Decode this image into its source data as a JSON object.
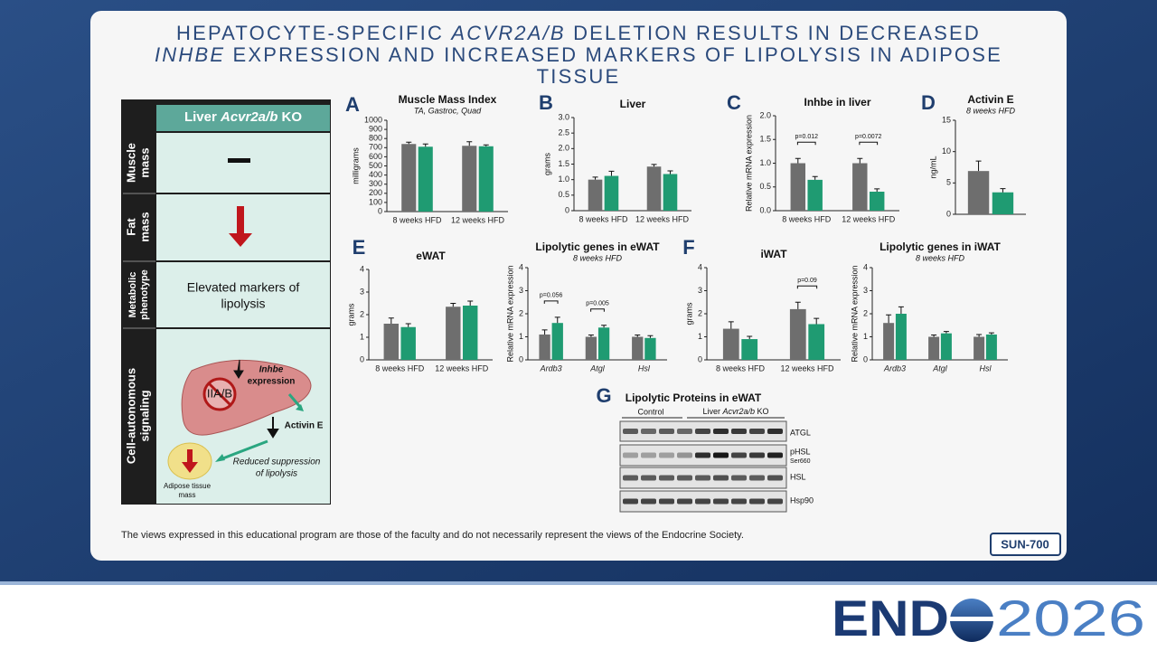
{
  "header": {
    "title_lines": [
      [
        "HEPATOCYTE-SPECIFIC ",
        "ACVR2A/B",
        " DELETION RESULTS IN DECREASED"
      ],
      [
        "INHBE",
        " EXPRESSION AND INCREASED MARKERS OF LIPOLYSIS IN ADIPOSE"
      ],
      [
        "TISSUE"
      ]
    ]
  },
  "summary_table": {
    "header": [
      "Liver ",
      "Acvr2a/b",
      " KO"
    ],
    "rows": [
      {
        "label": [
          "Muscle",
          "mass"
        ]
      },
      {
        "label": [
          "Fat",
          "mass"
        ]
      },
      {
        "label": [
          "Metabolic",
          "phenotype"
        ],
        "text": [
          "Elevated markers of",
          "lipolysis"
        ]
      },
      {
        "label": [
          "Cell-autonomous",
          "signaling"
        ],
        "diagram": {
          "receptor": "IIA/B",
          "inhbe": [
            "Inhbe",
            "expression"
          ],
          "activin": "Activin E",
          "effect": [
            "Reduced suppression",
            "of lipolysis"
          ],
          "adipose": [
            "Adipose tissue",
            "mass"
          ]
        }
      }
    ]
  },
  "chart_data": [
    {
      "type": "bar",
      "panel": "A",
      "title": "Muscle Mass Index",
      "subtitle": "TA, Gastroc, Quad",
      "y_label": "milligrams",
      "categories": [
        "8 weeks HFD",
        "12 weeks HFD"
      ],
      "series": [
        {
          "color": "#6e6e6e",
          "values": [
            740,
            720
          ],
          "errors": [
            20,
            45
          ]
        },
        {
          "color": "#1f9b72",
          "values": [
            710,
            715
          ],
          "errors": [
            30,
            15
          ]
        }
      ],
      "ylim": [
        0,
        1000
      ],
      "yticks": [
        0,
        100,
        200,
        300,
        400,
        500,
        600,
        700,
        800,
        900,
        1000
      ]
    },
    {
      "type": "bar",
      "panel": "B",
      "title": "Liver",
      "y_label": "grams",
      "categories": [
        "8 weeks HFD",
        "12 weeks HFD"
      ],
      "series": [
        {
          "color": "#6e6e6e",
          "values": [
            1.0,
            1.42
          ],
          "errors": [
            0.08,
            0.07
          ]
        },
        {
          "color": "#1f9b72",
          "values": [
            1.12,
            1.18
          ],
          "errors": [
            0.15,
            0.1
          ]
        }
      ],
      "ylim": [
        0,
        3
      ],
      "yticks": [
        0,
        0.5,
        {
          "value": 1,
          "label": "1.0"
        },
        1.5,
        {
          "value": 2,
          "label": "2.0"
        },
        2.5,
        {
          "value": 3,
          "label": "3.0"
        }
      ]
    },
    {
      "type": "bar",
      "panel": "C",
      "title": "Inhbe in liver",
      "y_label": "Relative mRNA expression",
      "categories": [
        "8 weeks HFD",
        "12 weeks HFD"
      ],
      "series": [
        {
          "color": "#6e6e6e",
          "values": [
            1.0,
            1.0
          ],
          "errors": [
            0.1,
            0.1
          ]
        },
        {
          "color": "#1f9b72",
          "values": [
            0.65,
            0.4
          ],
          "errors": [
            0.07,
            0.06
          ]
        }
      ],
      "ylim": [
        0,
        2
      ],
      "yticks": [
        {
          "value": 0,
          "label": "0.0"
        },
        0.5,
        {
          "value": 1,
          "label": "1.0"
        },
        1.5,
        {
          "value": 2,
          "label": "2.0"
        }
      ],
      "annotations": [
        "p=0.012",
        "p=0.0072"
      ]
    },
    {
      "type": "bar",
      "panel": "D",
      "title": "Activin E",
      "subtitle": "8 weeks HFD",
      "y_label": "ng/mL",
      "categories": [
        null
      ],
      "series": [
        {
          "color": "#6e6e6e",
          "values": [
            6.9
          ],
          "errors": [
            1.6
          ]
        },
        {
          "color": "#1f9b72",
          "values": [
            3.5
          ],
          "errors": [
            0.6
          ]
        }
      ],
      "ylim": [
        0,
        15
      ],
      "yticks": [
        0,
        5,
        10,
        15
      ]
    },
    {
      "type": "bar",
      "panel": "E",
      "title": "eWAT",
      "y_label": "grams",
      "categories": [
        "8 weeks HFD",
        "12 weeks HFD"
      ],
      "series": [
        {
          "color": "#6e6e6e",
          "values": [
            1.6,
            2.35
          ],
          "errors": [
            0.25,
            0.15
          ]
        },
        {
          "color": "#1f9b72",
          "values": [
            1.45,
            2.4
          ],
          "errors": [
            0.15,
            0.2
          ]
        }
      ],
      "ylim": [
        0,
        4
      ],
      "yticks": [
        0,
        1,
        2,
        3,
        4
      ]
    },
    {
      "type": "bar",
      "title": "Lipolytic genes in eWAT",
      "subtitle": "8 weeks HFD",
      "y_label": "Relative mRNA expression",
      "categories": [
        "Ardb3",
        "Atgl",
        "Hsl"
      ],
      "series": [
        {
          "color": "#6e6e6e",
          "values": [
            1.1,
            1.0,
            1.0
          ],
          "errors": [
            0.2,
            0.08,
            0.08
          ]
        },
        {
          "color": "#1f9b72",
          "values": [
            1.6,
            1.4,
            0.95
          ],
          "errors": [
            0.25,
            0.1,
            0.1
          ]
        }
      ],
      "ylim": [
        0,
        4
      ],
      "yticks": [
        0,
        1,
        2,
        3,
        4
      ],
      "annotations": [
        "p=0.056",
        "p=0.005"
      ]
    },
    {
      "type": "bar",
      "panel": "F",
      "title": "iWAT",
      "y_label": "grams",
      "categories": [
        "8 weeks HFD",
        "12 weeks HFD"
      ],
      "series": [
        {
          "color": "#6e6e6e",
          "values": [
            1.35,
            2.2
          ],
          "errors": [
            0.3,
            0.3
          ]
        },
        {
          "color": "#1f9b72",
          "values": [
            0.9,
            1.55
          ],
          "errors": [
            0.12,
            0.25
          ]
        }
      ],
      "ylim": [
        0,
        4
      ],
      "yticks": [
        0,
        1,
        2,
        3,
        4
      ],
      "annotations": [
        "p=0.09"
      ]
    },
    {
      "type": "bar",
      "title": "Lipolytic genes in iWAT",
      "subtitle": "8 weeks HFD",
      "y_label": "Relative mRNA expression",
      "categories": [
        "Ardb3",
        "Atgl",
        "Hsl"
      ],
      "series": [
        {
          "color": "#6e6e6e",
          "values": [
            1.6,
            1.0,
            1.0
          ],
          "errors": [
            0.35,
            0.08,
            0.1
          ]
        },
        {
          "color": "#1f9b72",
          "values": [
            2.0,
            1.15,
            1.1
          ],
          "errors": [
            0.3,
            0.08,
            0.07
          ]
        }
      ],
      "ylim": [
        0,
        4
      ],
      "yticks": [
        0,
        1,
        2,
        3,
        4
      ]
    }
  ],
  "western_blot": {
    "panel": "G",
    "title": "Lipolytic Proteins in eWAT",
    "groups": [
      "Control",
      [
        "Liver ",
        "Acvr2a/b",
        " KO"
      ]
    ],
    "rows": [
      [
        "ATGL"
      ],
      [
        "pHSL",
        "Ser660"
      ],
      [
        "HSL"
      ],
      [
        "Hsp90"
      ]
    ]
  },
  "footer": {
    "disclaimer": "The views expressed in this educational program are those of the faculty and do not necessarily represent the views of the Endocrine Society.",
    "poster_id": "SUN-700",
    "logo": [
      "END",
      "2026"
    ]
  }
}
